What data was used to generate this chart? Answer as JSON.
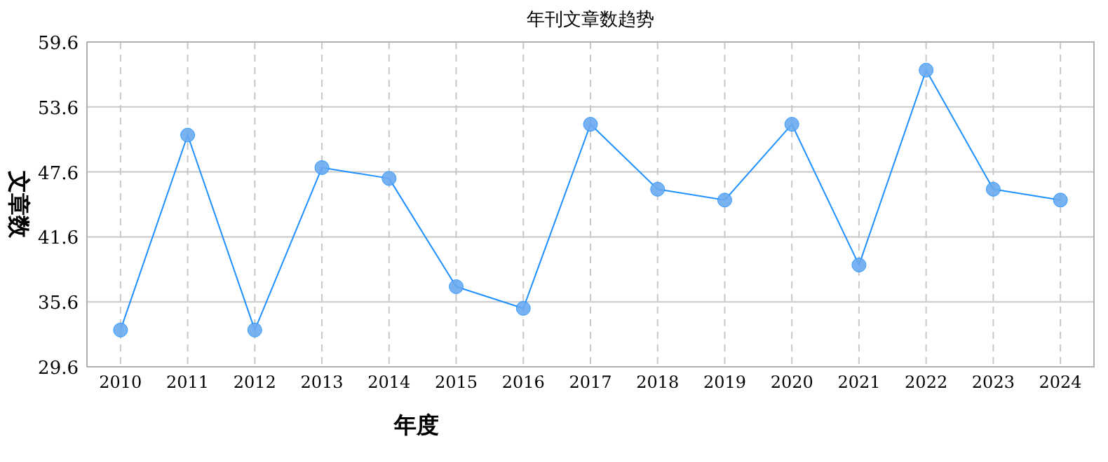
{
  "chart_data": {
    "type": "line",
    "title": "年刊文章数趋势",
    "xlabel": "年度",
    "ylabel": "文章数",
    "categories": [
      "2010",
      "2011",
      "2012",
      "2013",
      "2014",
      "2015",
      "2016",
      "2017",
      "2018",
      "2019",
      "2020",
      "2021",
      "2022",
      "2023",
      "2024"
    ],
    "series": [
      {
        "color": "#1e90ff",
        "values": [
          33,
          51,
          33,
          48,
          47,
          37,
          35,
          52,
          46,
          45,
          52,
          39,
          57,
          46,
          45
        ]
      }
    ],
    "ylim": [
      29.6,
      59.6
    ],
    "yticks": [
      29.6,
      35.6,
      41.6,
      47.6,
      53.6,
      59.6
    ],
    "grid": true,
    "marker": "circle",
    "line_style": "solid"
  }
}
